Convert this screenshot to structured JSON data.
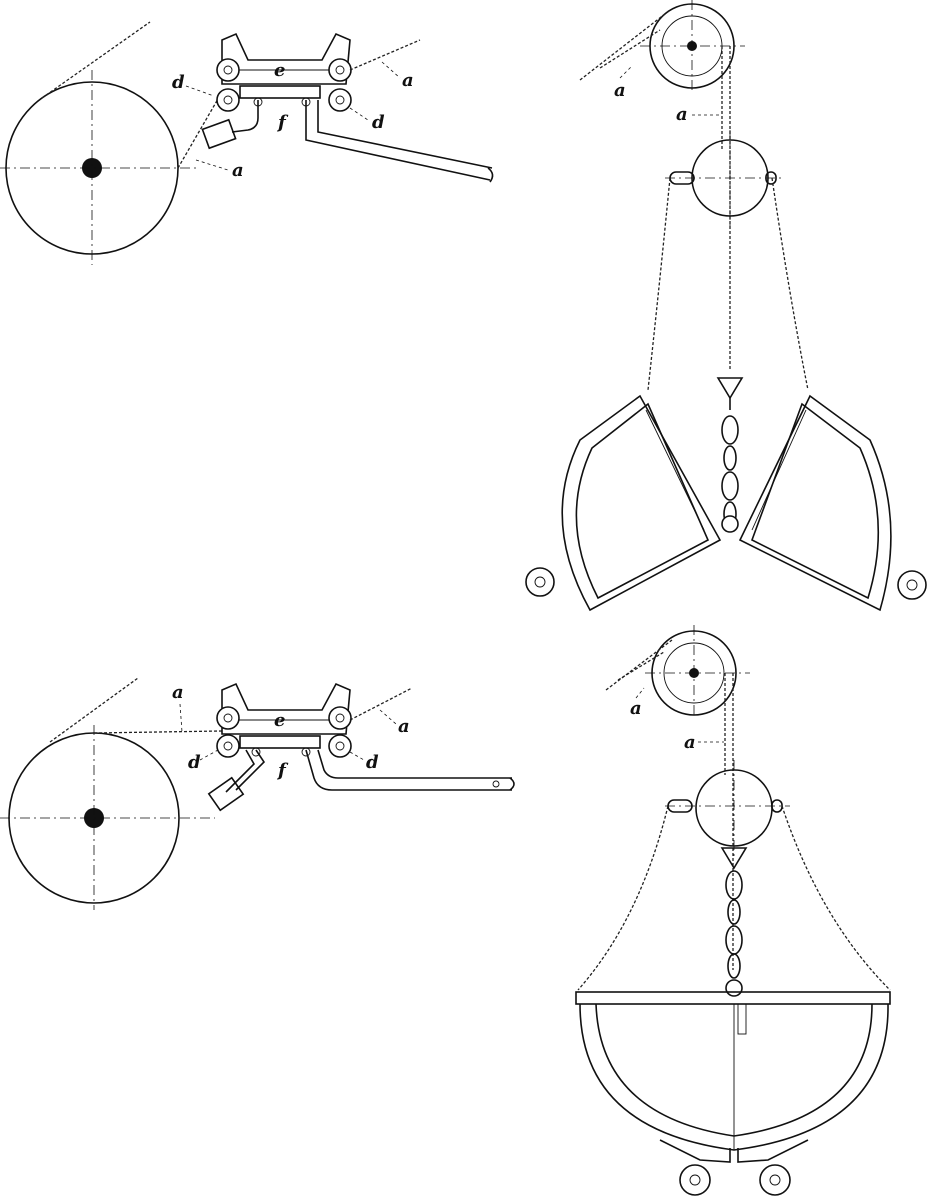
{
  "labels": {
    "chain": "a",
    "roller": "d",
    "frame": "e",
    "shaft": "f"
  },
  "ink_color": "#111111",
  "background_color": "#ffffff"
}
